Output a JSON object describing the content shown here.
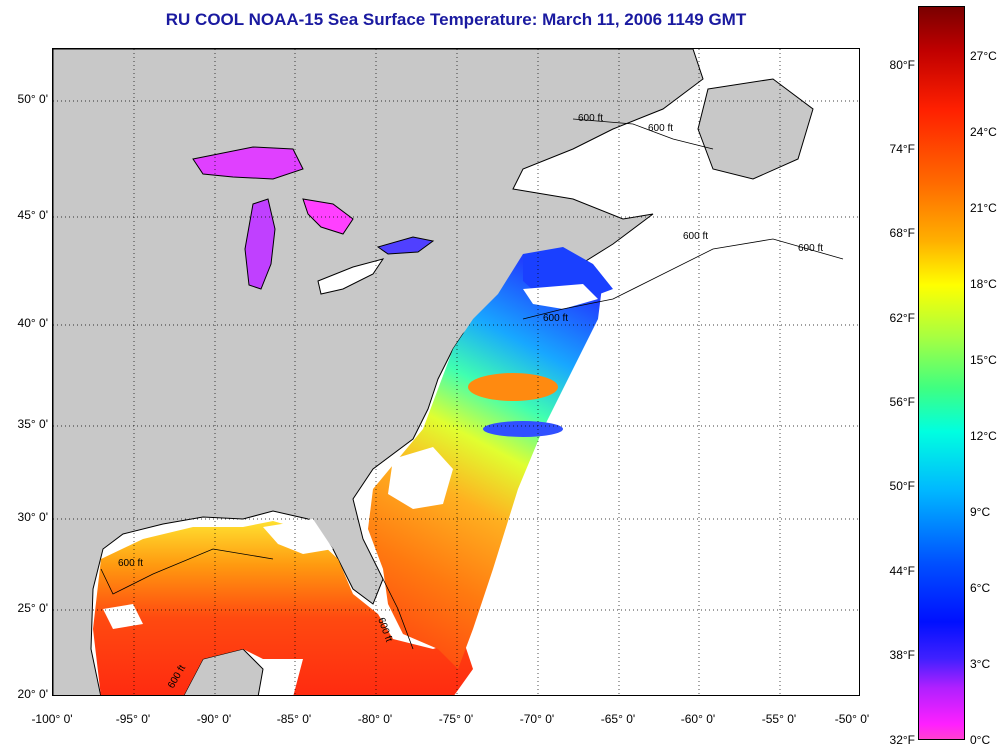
{
  "title": "RU COOL  NOAA-15  Sea Surface Temperature:  March 11, 2006 1149 GMT",
  "map": {
    "lat_labels": [
      "50° 0'",
      "45° 0'",
      "40° 0'",
      "35° 0'",
      "30° 0'",
      "25° 0'",
      "20° 0'"
    ],
    "lon_labels": [
      "-100° 0'",
      "-95° 0'",
      "-90° 0'",
      "-85° 0'",
      "-80° 0'",
      "-75° 0'",
      "-70° 0'",
      "-65° 0'",
      "-60° 0'",
      "-55° 0'",
      "-50° 0'"
    ],
    "contour_labels": [
      "600 ft",
      "600 ft",
      "600 ft",
      "600 ft",
      "600 ft",
      "600 ft",
      "600 ft",
      "600 ft"
    ],
    "colors": {
      "land": "#c8c8c8",
      "cloud_no_data": "#ffffff",
      "warm": "#ff3010",
      "cold": "#1030ff",
      "lake": "#e040ff"
    }
  },
  "colorbar": {
    "fahrenheit": [
      "80°F",
      "74°F",
      "68°F",
      "62°F",
      "56°F",
      "50°F",
      "44°F",
      "38°F",
      "32°F"
    ],
    "celsius": [
      "27°C",
      "24°C",
      "21°C",
      "18°C",
      "15°C",
      "12°C",
      "9°C",
      "6°C",
      "3°C",
      "0°C"
    ]
  }
}
